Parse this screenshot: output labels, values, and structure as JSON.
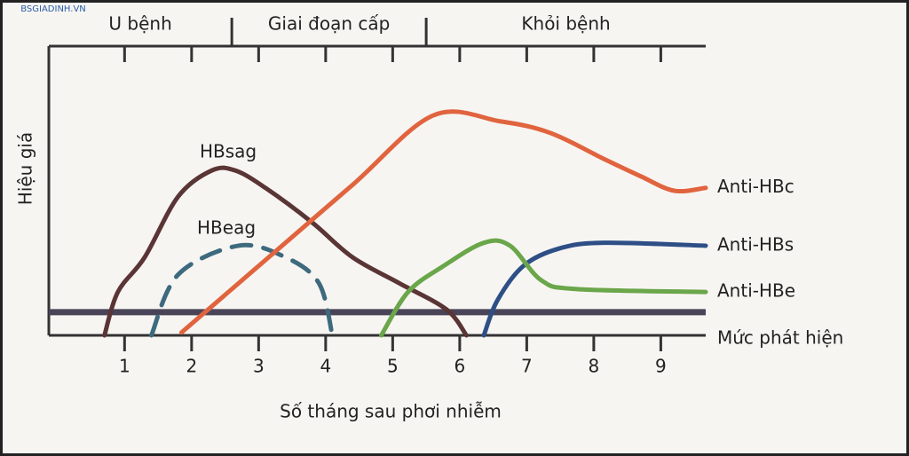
{
  "chart_data": {
    "type": "line",
    "watermark": "BSGIADINH.VN",
    "xlabel": "Số tháng sau phơi nhiễm",
    "ylabel": "Hiệu giá",
    "xlim": [
      -0.13,
      9.67
    ],
    "ylim": [
      0,
      100
    ],
    "xticks": [
      1,
      2,
      3,
      4,
      5,
      6,
      7,
      8,
      9
    ],
    "phases": [
      "U bệnh",
      "Giai đoạn cấp",
      "Khỏi bệnh"
    ],
    "phase_boundaries": [
      2.6,
      5.5
    ],
    "detection_level": {
      "label": "Mức phát hiện",
      "value": 8,
      "color": "#4a4458"
    },
    "series": [
      {
        "name": "HBsag",
        "color": "#5a3535",
        "style": "solid",
        "x": [
          0.7,
          0.9,
          1.3,
          1.8,
          2.3,
          2.65,
          3.1,
          3.8,
          4.4,
          5.1,
          5.8,
          6.1
        ],
        "values": [
          0,
          15,
          27,
          48,
          57,
          57,
          51,
          39,
          27,
          18,
          9,
          0
        ]
      },
      {
        "name": "HBeag",
        "color": "#3e6a7e",
        "style": "dashed",
        "x": [
          1.4,
          1.8,
          2.7,
          3.4,
          3.9,
          4.1
        ],
        "values": [
          0,
          21,
          31,
          27,
          18,
          0
        ]
      },
      {
        "name": "Anti-HBc",
        "color": "#e0643e",
        "style": "solid",
        "x": [
          1.85,
          3.1,
          4.4,
          5.6,
          6.6,
          7.35,
          8.15,
          8.7,
          9.2,
          9.67
        ],
        "values": [
          1,
          26,
          52,
          76,
          74,
          70,
          61,
          55,
          50,
          51
        ]
      },
      {
        "name": "Anti-HBs",
        "color": "#2e4f86",
        "style": "solid",
        "x": [
          6.36,
          6.56,
          6.95,
          7.48,
          8.15,
          9.67
        ],
        "values": [
          0,
          12,
          24,
          30,
          32,
          31
        ]
      },
      {
        "name": "Anti-HBe",
        "color": "#6aa64a",
        "style": "solid",
        "x": [
          4.83,
          5.23,
          5.76,
          6.36,
          6.75,
          7.22,
          7.75,
          9.67
        ],
        "values": [
          0,
          15,
          24,
          32,
          31,
          19,
          16,
          15
        ]
      }
    ]
  }
}
